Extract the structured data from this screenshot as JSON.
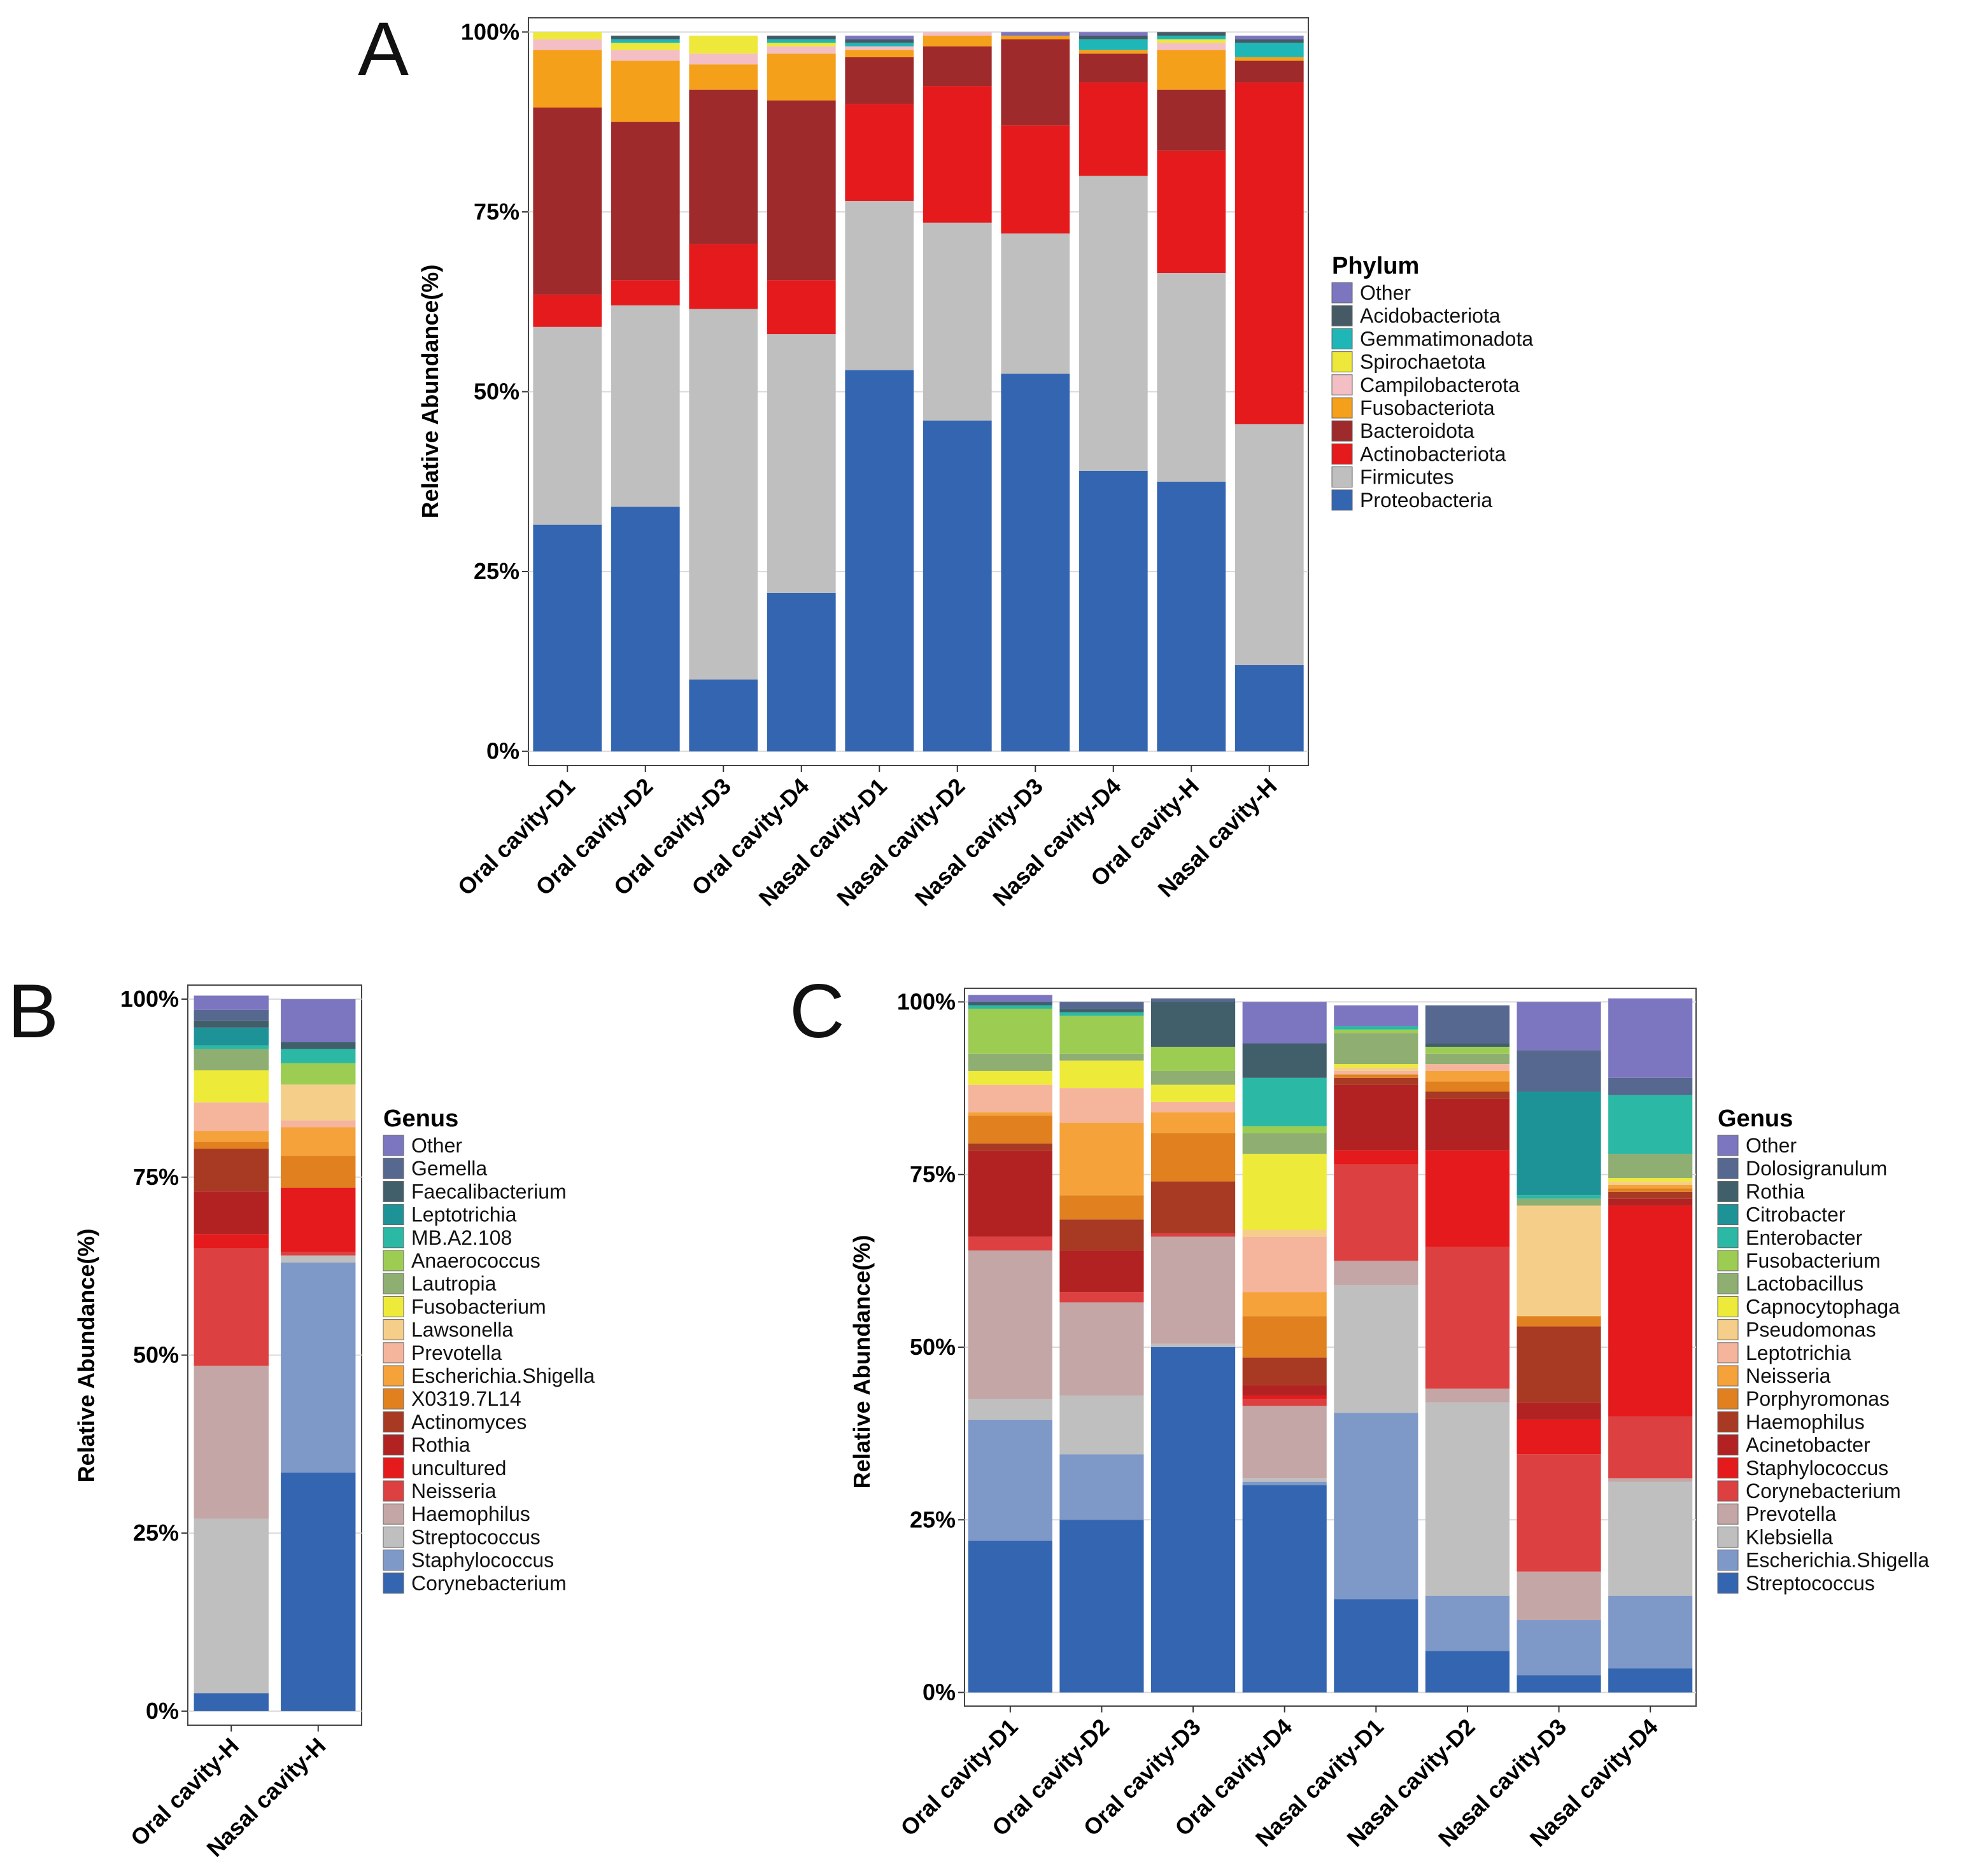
{
  "chart_data": [
    {
      "id": "A",
      "panel_label": "A",
      "type": "bar",
      "stacked": true,
      "ylabel": "Relative Abundance(%)",
      "ylim": [
        0,
        100
      ],
      "yticks": [
        "0%",
        "25%",
        "50%",
        "75%",
        "100%"
      ],
      "categories": [
        "Oral cavity-D1",
        "Oral cavity-D2",
        "Oral cavity-D3",
        "Oral cavity-D4",
        "Nasal cavity-D1",
        "Nasal cavity-D2",
        "Nasal cavity-D3",
        "Nasal cavity-D4",
        "Oral cavity-H",
        "Nasal cavity-H"
      ],
      "legend_title": "Phylum",
      "series": [
        {
          "name": "Proteobacteria",
          "color": "#3465b0",
          "values": [
            31.5,
            34,
            10,
            22,
            53,
            46,
            52.5,
            39,
            37.5,
            12
          ]
        },
        {
          "name": "Firmicutes",
          "color": "#bfbfbf",
          "values": [
            27.5,
            28,
            51.5,
            36,
            23.5,
            27.5,
            19.5,
            41,
            29,
            33.5
          ]
        },
        {
          "name": "Actinobacteriota",
          "color": "#e41a1c",
          "values": [
            4.5,
            3.5,
            9,
            7.5,
            13.5,
            19,
            15,
            13,
            17,
            47.5
          ]
        },
        {
          "name": "Bacteroidota",
          "color": "#9e2a2b",
          "values": [
            26,
            22,
            21.5,
            25,
            6.5,
            5.5,
            12,
            4,
            8.5,
            3
          ]
        },
        {
          "name": "Fusobacteriota",
          "color": "#f5a01a",
          "values": [
            8,
            8.5,
            3.5,
            6.5,
            1,
            1.5,
            0.5,
            0.5,
            5.5,
            0.5
          ]
        },
        {
          "name": "Campilobacterota",
          "color": "#f4bfc4",
          "values": [
            1.5,
            1.5,
            1.5,
            1,
            0.5,
            0.5,
            0,
            0,
            1,
            0
          ]
        },
        {
          "name": "Spirochaetota",
          "color": "#ede839",
          "values": [
            1,
            1,
            2.5,
            0.5,
            0,
            0,
            0,
            0,
            0.5,
            0
          ]
        },
        {
          "name": "Gemmatimonadota",
          "color": "#1eb6b6",
          "values": [
            0,
            0.5,
            0,
            0.5,
            0.5,
            0,
            0,
            1.5,
            0.5,
            2
          ]
        },
        {
          "name": "Acidobacteriota",
          "color": "#455a64",
          "values": [
            0,
            0.5,
            0,
            0.5,
            0.5,
            0,
            0,
            0.5,
            0.5,
            0.5
          ]
        },
        {
          "name": "Other",
          "color": "#7b76bf",
          "values": [
            0,
            0,
            0,
            0,
            0.5,
            0,
            0.5,
            0.5,
            0,
            0.5
          ]
        }
      ]
    },
    {
      "id": "B",
      "panel_label": "B",
      "type": "bar",
      "stacked": true,
      "ylabel": "Relative Abundance(%)",
      "ylim": [
        0,
        100
      ],
      "yticks": [
        "0%",
        "25%",
        "50%",
        "75%",
        "100%"
      ],
      "categories": [
        "Oral cavity-H",
        "Nasal cavity-H"
      ],
      "legend_title": "Genus",
      "series": [
        {
          "name": "Corynebacterium",
          "color": "#3465b0",
          "values": [
            2.5,
            33.5
          ]
        },
        {
          "name": "Staphylococcus",
          "color": "#7e98c8",
          "values": [
            0,
            29.5
          ]
        },
        {
          "name": "Streptococcus",
          "color": "#bfbfbf",
          "values": [
            24.5,
            1
          ]
        },
        {
          "name": "Haemophilus",
          "color": "#c4a6a6",
          "values": [
            21.5,
            0
          ]
        },
        {
          "name": "Neisseria",
          "color": "#dc4040",
          "values": [
            16.5,
            0.5
          ]
        },
        {
          "name": "uncultured",
          "color": "#e41a1c",
          "values": [
            2,
            9
          ]
        },
        {
          "name": "Rothia",
          "color": "#b22222",
          "values": [
            6,
            0
          ]
        },
        {
          "name": "Actinomyces",
          "color": "#a83a24",
          "values": [
            6,
            0
          ]
        },
        {
          "name": "X0319.7L14",
          "color": "#e0801e",
          "values": [
            1,
            4.5
          ]
        },
        {
          "name": "Escherichia.Shigella",
          "color": "#f5a23a",
          "values": [
            1.5,
            4
          ]
        },
        {
          "name": "Prevotella",
          "color": "#f4b59c",
          "values": [
            4,
            1
          ]
        },
        {
          "name": "Lawsonella",
          "color": "#f5cf8a",
          "values": [
            0,
            5
          ]
        },
        {
          "name": "Fusobacterium",
          "color": "#eeea3a",
          "values": [
            4.5,
            0
          ]
        },
        {
          "name": "Lautropia",
          "color": "#8fae72",
          "values": [
            3,
            0
          ]
        },
        {
          "name": "Anaerococcus",
          "color": "#9ccd52",
          "values": [
            0,
            3
          ]
        },
        {
          "name": "MB.A2.108",
          "color": "#2bb8a5",
          "values": [
            0.5,
            2
          ]
        },
        {
          "name": "Leptotrichia",
          "color": "#1e9397",
          "values": [
            2.5,
            0
          ]
        },
        {
          "name": "Faecalibacterium",
          "color": "#415f6b",
          "values": [
            1,
            1
          ]
        },
        {
          "name": "Gemella",
          "color": "#56688f",
          "values": [
            1.5,
            0
          ]
        },
        {
          "name": "Other",
          "color": "#7b76bf",
          "values": [
            2,
            6
          ]
        }
      ]
    },
    {
      "id": "C",
      "panel_label": "C",
      "type": "bar",
      "stacked": true,
      "ylabel": "Relative Abundance(%)",
      "ylim": [
        0,
        100
      ],
      "yticks": [
        "0%",
        "25%",
        "50%",
        "75%",
        "100%"
      ],
      "categories": [
        "Oral cavity-D1",
        "Oral cavity-D2",
        "Oral cavity-D3",
        "Oral cavity-D4",
        "Nasal cavity-D1",
        "Nasal cavity-D2",
        "Nasal cavity-D3",
        "Nasal cavity-D4"
      ],
      "legend_title": "Genus",
      "series": [
        {
          "name": "Streptococcus",
          "color": "#3465b0",
          "values": [
            22,
            25,
            50,
            30,
            13.5,
            6,
            2.5,
            3.5
          ]
        },
        {
          "name": "Escherichia.Shigella",
          "color": "#7e98c8",
          "values": [
            17.5,
            9.5,
            0,
            0.5,
            27,
            8,
            8,
            10.5
          ]
        },
        {
          "name": "Klebsiella",
          "color": "#bfbfbf",
          "values": [
            3,
            8.5,
            0.5,
            0.5,
            18.5,
            28,
            0,
            16.5
          ]
        },
        {
          "name": "Prevotella",
          "color": "#c4a6a6",
          "values": [
            21.5,
            13.5,
            15.5,
            10.5,
            3.5,
            2,
            7,
            0.5
          ]
        },
        {
          "name": "Corynebacterium",
          "color": "#dc4040",
          "values": [
            2,
            1.5,
            0.5,
            1,
            14,
            20.5,
            17,
            9
          ]
        },
        {
          "name": "Staphylococcus",
          "color": "#e41a1c",
          "values": [
            0,
            0,
            0,
            0.5,
            2,
            14,
            5,
            30.5
          ]
        },
        {
          "name": "Acinetobacter",
          "color": "#b22222",
          "values": [
            12.5,
            6,
            0,
            1.5,
            9.5,
            7.5,
            2.5,
            1
          ]
        },
        {
          "name": "Haemophilus",
          "color": "#a83a24",
          "values": [
            1,
            4.5,
            7.5,
            4,
            1,
            1,
            11,
            1
          ]
        },
        {
          "name": "Porphyromonas",
          "color": "#e0801e",
          "values": [
            4,
            3.5,
            7,
            6,
            0.5,
            1.5,
            1.5,
            0.5
          ]
        },
        {
          "name": "Neisseria",
          "color": "#f5a23a",
          "values": [
            0.5,
            10.5,
            3,
            3.5,
            0,
            1.5,
            0,
            0.5
          ]
        },
        {
          "name": "Leptotrichia",
          "color": "#f4b59c",
          "values": [
            4,
            5,
            1.5,
            8,
            0.5,
            1,
            0,
            0
          ]
        },
        {
          "name": "Pseudomonas",
          "color": "#f5cf8a",
          "values": [
            0,
            0,
            0,
            1,
            0.5,
            0,
            16,
            0.5
          ]
        },
        {
          "name": "Capnocytophaga",
          "color": "#eeea3a",
          "values": [
            2,
            4,
            2.5,
            11,
            0.5,
            0,
            0,
            0.5
          ]
        },
        {
          "name": "Lactobacillus",
          "color": "#8fae72",
          "values": [
            2.5,
            1,
            2,
            3,
            4.5,
            1.5,
            1,
            3.5
          ]
        },
        {
          "name": "Fusobacterium",
          "color": "#9ccd52",
          "values": [
            6.5,
            5.5,
            3.5,
            1,
            0.5,
            1,
            0,
            0
          ]
        },
        {
          "name": "Enterobacter",
          "color": "#2bb8a5",
          "values": [
            0.5,
            0.5,
            0,
            7,
            0.5,
            0,
            0.5,
            8.5
          ]
        },
        {
          "name": "Citrobacter",
          "color": "#1e9397",
          "values": [
            0,
            0,
            0,
            0,
            0,
            0,
            15,
            0
          ]
        },
        {
          "name": "Rothia",
          "color": "#415f6b",
          "values": [
            0.5,
            0.5,
            6.5,
            5,
            0,
            0.5,
            0,
            0
          ]
        },
        {
          "name": "Dolosigranulum",
          "color": "#56688f",
          "values": [
            0,
            1,
            0.5,
            0,
            0,
            5.5,
            6,
            2.5
          ]
        },
        {
          "name": "Other",
          "color": "#7b76bf",
          "values": [
            1,
            0,
            0,
            6,
            3,
            0,
            7,
            11.5
          ]
        }
      ]
    }
  ]
}
